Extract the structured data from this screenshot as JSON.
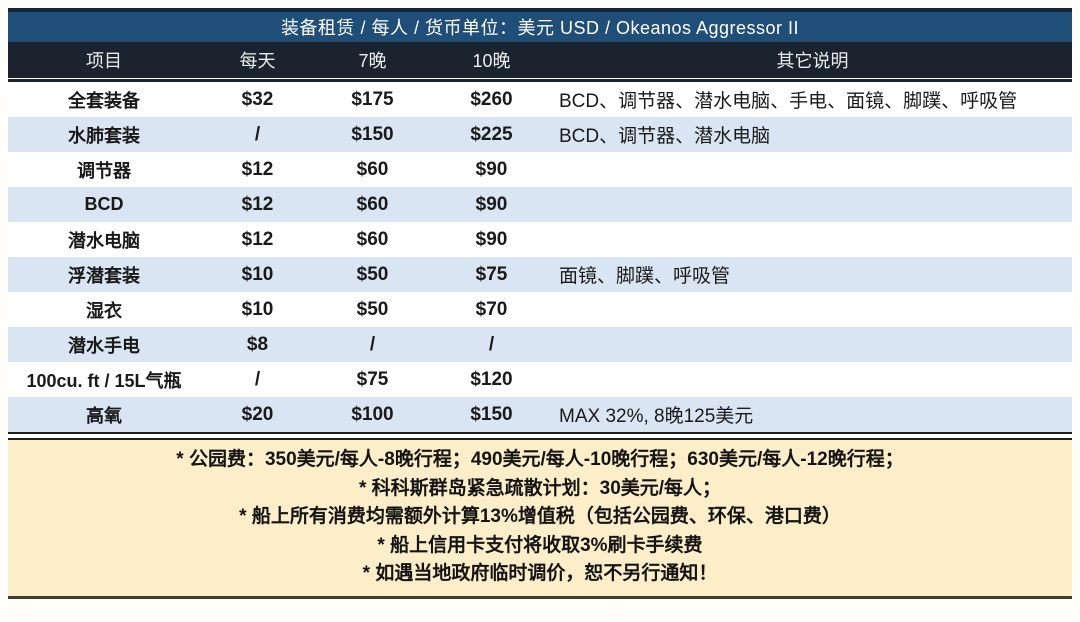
{
  "title": "装备租赁 / 每人 / 货币单位：美元 USD / Okeanos Aggressor II",
  "table": {
    "columns": [
      "项目",
      "每天",
      "7晚",
      "10晚",
      "其它说明"
    ],
    "rows": [
      {
        "item": "全套装备",
        "daily": "$32",
        "n7": "$175",
        "n10": "$260",
        "notes": "BCD、调节器、潜水电脑、手电、面镜、脚蹼、呼吸管"
      },
      {
        "item": "水肺套装",
        "daily": "/",
        "n7": "$150",
        "n10": "$225",
        "notes": "BCD、调节器、潜水电脑"
      },
      {
        "item": "调节器",
        "daily": "$12",
        "n7": "$60",
        "n10": "$90",
        "notes": ""
      },
      {
        "item": "BCD",
        "daily": "$12",
        "n7": "$60",
        "n10": "$90",
        "notes": ""
      },
      {
        "item": "潜水电脑",
        "daily": "$12",
        "n7": "$60",
        "n10": "$90",
        "notes": ""
      },
      {
        "item": "浮潜套装",
        "daily": "$10",
        "n7": "$50",
        "n10": "$75",
        "notes": "面镜、脚蹼、呼吸管"
      },
      {
        "item": "湿衣",
        "daily": "$10",
        "n7": "$50",
        "n10": "$70",
        "notes": ""
      },
      {
        "item": "潜水手电",
        "daily": "$8",
        "n7": "/",
        "n10": "/",
        "notes": ""
      },
      {
        "item": "100cu. ft / 15L气瓶",
        "daily": "/",
        "n7": "$75",
        "n10": "$120",
        "notes": ""
      },
      {
        "item": "高氧",
        "daily": "$20",
        "n7": "$100",
        "n10": "$150",
        "notes": "MAX 32%, 8晚125美元"
      }
    ]
  },
  "footnotes": [
    "* 公园费：350美元/每人-8晚行程；490美元/每人-10晚行程；630美元/每人-12晚行程；",
    "* 科科斯群岛紧急疏散计划：30美元/每人；",
    "* 船上所有消费均需额外计算13%增值税（包括公园费、环保、港口费）",
    "* 船上信用卡支付将收取3%刷卡手续费",
    "* 如遇当地政府临时调价，恕不另行通知！"
  ],
  "colors": {
    "title_bar_bg": "#1f4e79",
    "header_row_bg": "#1a232e",
    "row_alt_bg": "#d9e5f2",
    "footer_bg": "#fbeec9",
    "footer_border": "#3e3e2c",
    "header_text": "#ececec",
    "body_text": "#1a1a1a"
  }
}
